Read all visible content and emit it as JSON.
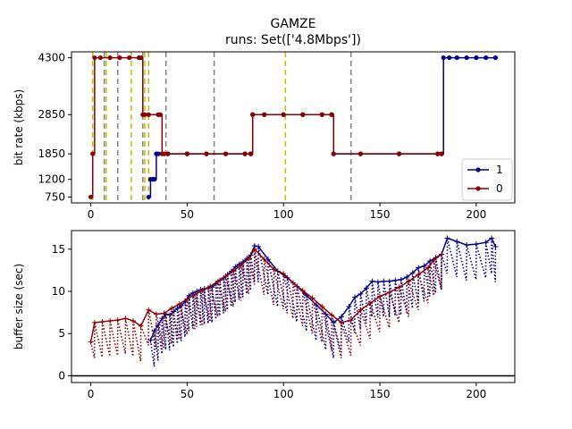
{
  "title": "GAMZE",
  "subtitle": "runs: Set(['4.8Mbps'])",
  "colors": {
    "series1": "#00008b",
    "series0": "#8b0000",
    "vline_gray": "#808080",
    "vline_yellow": "#bfbf00"
  },
  "chart_data": [
    {
      "type": "line",
      "ylabel": "bit rate (kbps)",
      "xlim": [
        -10,
        220
      ],
      "ylim": [
        600,
        4450
      ],
      "xticks": [
        0,
        50,
        100,
        150,
        200
      ],
      "yticks": [
        750,
        1200,
        1850,
        2850,
        4300
      ],
      "legend": {
        "placement": "lower-right",
        "entries": [
          "1",
          "0"
        ]
      },
      "vlines_gray": [
        7,
        14,
        27,
        39,
        64,
        135
      ],
      "vlines_yellow": [
        1,
        8,
        21,
        28,
        30,
        101
      ],
      "series": [
        {
          "name": "1",
          "color": "#00008b",
          "x": [
            30,
            31,
            32,
            33,
            34,
            35,
            40,
            50,
            60,
            70,
            80,
            83,
            84,
            90,
            100,
            110,
            120,
            125,
            126,
            140,
            160,
            180,
            182,
            183,
            186,
            190,
            195,
            200,
            205,
            210
          ],
          "y": [
            750,
            1200,
            1200,
            1200,
            1850,
            1850,
            1850,
            1850,
            1850,
            1850,
            1850,
            1850,
            2850,
            2850,
            2850,
            2850,
            2850,
            2850,
            1850,
            1850,
            1850,
            1850,
            1850,
            4300,
            4300,
            4300,
            4300,
            4300,
            4300,
            4300
          ]
        },
        {
          "name": "0",
          "color": "#8b0000",
          "x": [
            0,
            1,
            2,
            5,
            10,
            15,
            20,
            25,
            26,
            27,
            28,
            30,
            35,
            36,
            37,
            38,
            40,
            50,
            60,
            70,
            80,
            83,
            84,
            90,
            100,
            110,
            120,
            125,
            126,
            140,
            160,
            180,
            182
          ],
          "y": [
            750,
            1850,
            4300,
            4300,
            4300,
            4300,
            4300,
            4300,
            4300,
            2850,
            2850,
            2850,
            2850,
            2850,
            1850,
            1850,
            1850,
            1850,
            1850,
            1850,
            1850,
            1850,
            2850,
            2850,
            2850,
            2850,
            2850,
            2850,
            1850,
            1850,
            1850,
            1850,
            1850
          ]
        }
      ]
    },
    {
      "type": "line",
      "ylabel": "buffer size (sec)",
      "xlim": [
        -10,
        220
      ],
      "ylim": [
        -0.8,
        17.2
      ],
      "xticks": [
        0,
        50,
        100,
        150,
        200
      ],
      "yticks": [
        0,
        5,
        10,
        15
      ],
      "series": [
        {
          "name": "1",
          "color": "#00008b",
          "x": [
            31,
            33,
            35,
            37,
            39,
            41,
            43,
            45,
            47,
            49,
            51,
            53,
            55,
            57,
            59,
            61,
            63,
            65,
            67,
            69,
            71,
            73,
            75,
            77,
            79,
            81,
            83,
            85,
            87,
            92,
            97,
            102,
            107,
            112,
            117,
            122,
            126,
            130,
            134,
            137,
            140,
            143,
            146,
            149,
            152,
            155,
            158,
            161,
            164,
            167,
            170,
            173,
            176,
            179,
            182,
            185,
            190,
            195,
            200,
            205,
            208,
            210
          ],
          "y": [
            4.2,
            5.3,
            6.0,
            6.8,
            7.3,
            7.2,
            7.6,
            8.0,
            8.3,
            8.8,
            9.5,
            9.8,
            10.0,
            10.2,
            10.3,
            10.4,
            10.5,
            10.9,
            11.3,
            11.6,
            12.0,
            12.4,
            12.9,
            13.2,
            13.5,
            13.9,
            14.3,
            15.4,
            15.3,
            13.8,
            12.4,
            11.6,
            10.6,
            9.5,
            8.4,
            7.3,
            6.3,
            7.0,
            8.2,
            9.3,
            9.7,
            10.4,
            11.2,
            11.1,
            11.2,
            11.2,
            11.3,
            11.4,
            11.7,
            12.2,
            12.8,
            13.0,
            13.6,
            14.0,
            14.4,
            16.3,
            15.9,
            15.5,
            15.6,
            15.8,
            16.3,
            15.3
          ]
        },
        {
          "name": "0",
          "color": "#8b0000",
          "x": [
            0,
            2,
            6,
            10,
            14,
            18,
            22,
            26,
            30,
            34,
            38,
            42,
            46,
            50,
            54,
            58,
            62,
            66,
            70,
            74,
            78,
            82,
            85,
            90,
            95,
            100,
            105,
            110,
            115,
            120,
            125,
            130,
            135,
            140,
            145,
            150,
            155,
            160,
            165,
            170,
            175,
            178,
            182
          ],
          "y": [
            4.0,
            6.3,
            6.4,
            6.5,
            6.6,
            6.8,
            6.5,
            5.9,
            7.8,
            7.3,
            7.4,
            8.0,
            8.5,
            9.1,
            9.6,
            10.1,
            10.6,
            11.2,
            11.8,
            12.4,
            13.1,
            13.9,
            15.0,
            13.8,
            12.6,
            12.1,
            11.0,
            10.1,
            9.2,
            8.2,
            7.2,
            6.3,
            6.6,
            7.8,
            8.6,
            9.4,
            9.9,
            10.5,
            11.2,
            12.0,
            12.8,
            13.7,
            14.4
          ]
        }
      ]
    }
  ]
}
